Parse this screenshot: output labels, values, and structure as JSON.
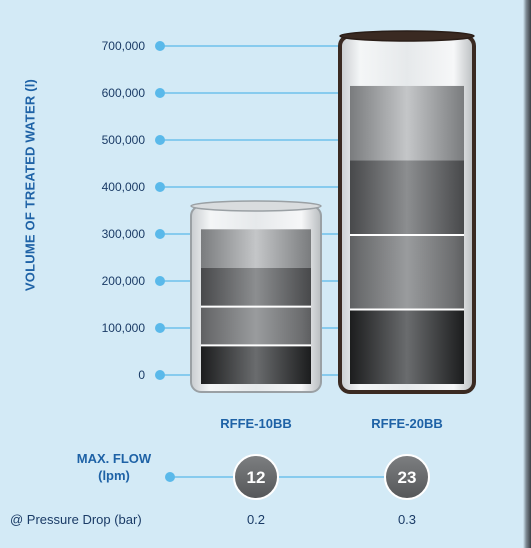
{
  "chart_data": {
    "type": "bar",
    "categories": [
      "RFFE-10BB",
      "RFFE-20BB"
    ],
    "values": [
      310000,
      615000
    ],
    "ylabel": "VOLUME OF TREATED WATER (l)",
    "ylim": [
      0,
      700000
    ],
    "yticks": [
      "0",
      "100,000",
      "200,000",
      "300,000",
      "400,000",
      "500,000",
      "600,000",
      "700,000"
    ],
    "grid": true,
    "flow": {
      "label": "MAX. FLOW (lpm)",
      "values": [
        "12",
        "23"
      ]
    },
    "pressure_drop": {
      "label": "@ Pressure Drop (bar)",
      "values": [
        "0.2",
        "0.3"
      ]
    }
  },
  "colors": {
    "axis_blue": "#5ab9ea",
    "text_blue": "#1e62a6",
    "background": "#d3eaf6",
    "badge": "#6d6f71"
  }
}
